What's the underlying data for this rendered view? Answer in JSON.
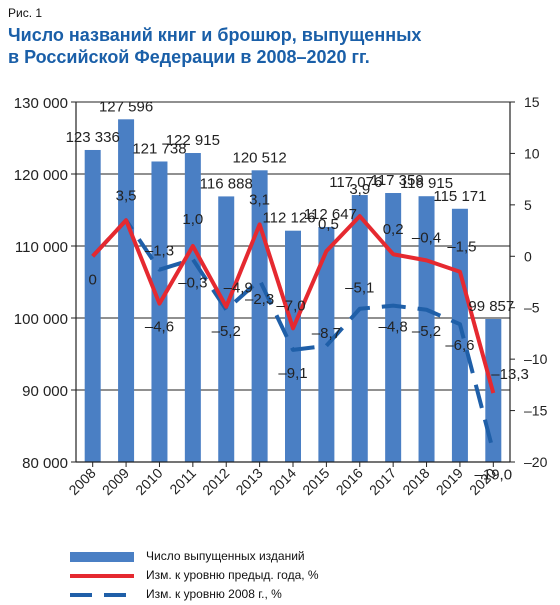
{
  "figure_label": "Рис. 1",
  "title_line1": "Число названий книг и брошюр, выпущенных",
  "title_line2": "в Российской Федерации в 2008–2020 гг.",
  "colors": {
    "bar": "#4a7fc4",
    "line_prev": "#e52930",
    "line_2008": "#1f5fa8",
    "title": "#1a5fa8"
  },
  "chart_data": {
    "type": "bar",
    "categories": [
      "2008",
      "2009",
      "2010",
      "2011",
      "2012",
      "2013",
      "2014",
      "2015",
      "2016",
      "2017",
      "2018",
      "2019",
      "2020"
    ],
    "left_axis": {
      "ylim": [
        80000,
        130000
      ],
      "ticks": [
        80000,
        90000,
        100000,
        110000,
        120000,
        130000
      ],
      "tick_labels": [
        "80 000",
        "90 000",
        "100 000",
        "110 000",
        "120 000",
        "130 000"
      ]
    },
    "right_axis": {
      "ylim": [
        -20,
        15
      ],
      "ticks": [
        -20,
        -15,
        -10,
        -5,
        0,
        5,
        10,
        15
      ],
      "tick_labels": [
        "–20",
        "–15",
        "–10",
        "–5",
        "0",
        "5",
        "10",
        "15"
      ]
    },
    "series": [
      {
        "name": "Число выпущенных изданий",
        "type": "bar",
        "axis": "left",
        "values": [
          123336,
          127596,
          121738,
          122915,
          116888,
          120512,
          112126,
          112647,
          117076,
          117359,
          116915,
          115171,
          99857
        ],
        "labels": [
          "123 336",
          "127 596",
          "121 738",
          "122 915",
          "116 888",
          "120 512",
          "112 126",
          "112 647",
          "117 076",
          "117 359",
          "116 915",
          "115 171",
          "99 857"
        ]
      },
      {
        "name": "Изм. к уровню предыд. года, %",
        "type": "line",
        "axis": "right",
        "values": [
          0,
          3.5,
          -4.6,
          1.0,
          -4.9,
          3.1,
          -7.0,
          0.5,
          3.9,
          0.2,
          -0.4,
          -1.5,
          -13.3
        ],
        "labels": [
          "0",
          "3,5",
          "–4,6",
          "1,0",
          "–4,9",
          "3,1",
          "–7,0",
          "0,5",
          "3,9",
          "0,2",
          "–0,4",
          "–1,5",
          "–13,3"
        ]
      },
      {
        "name": "Изм. к уровню 2008 г., %",
        "type": "line",
        "axis": "right",
        "values": [
          0,
          3.5,
          -1.3,
          -0.3,
          -5.2,
          -2.3,
          -9.1,
          -8.7,
          -5.1,
          -4.8,
          -5.2,
          -6.6,
          -19.0
        ],
        "labels": [
          "0",
          "3,5",
          "–1,3",
          "–0,3",
          "–5,2",
          "–2,3",
          "–9,1",
          "–8,7",
          "–5,1",
          "–4,8",
          "–5,2",
          "–6,6",
          "–19,0"
        ]
      }
    ],
    "grid": true,
    "legend_position": "bottom"
  }
}
